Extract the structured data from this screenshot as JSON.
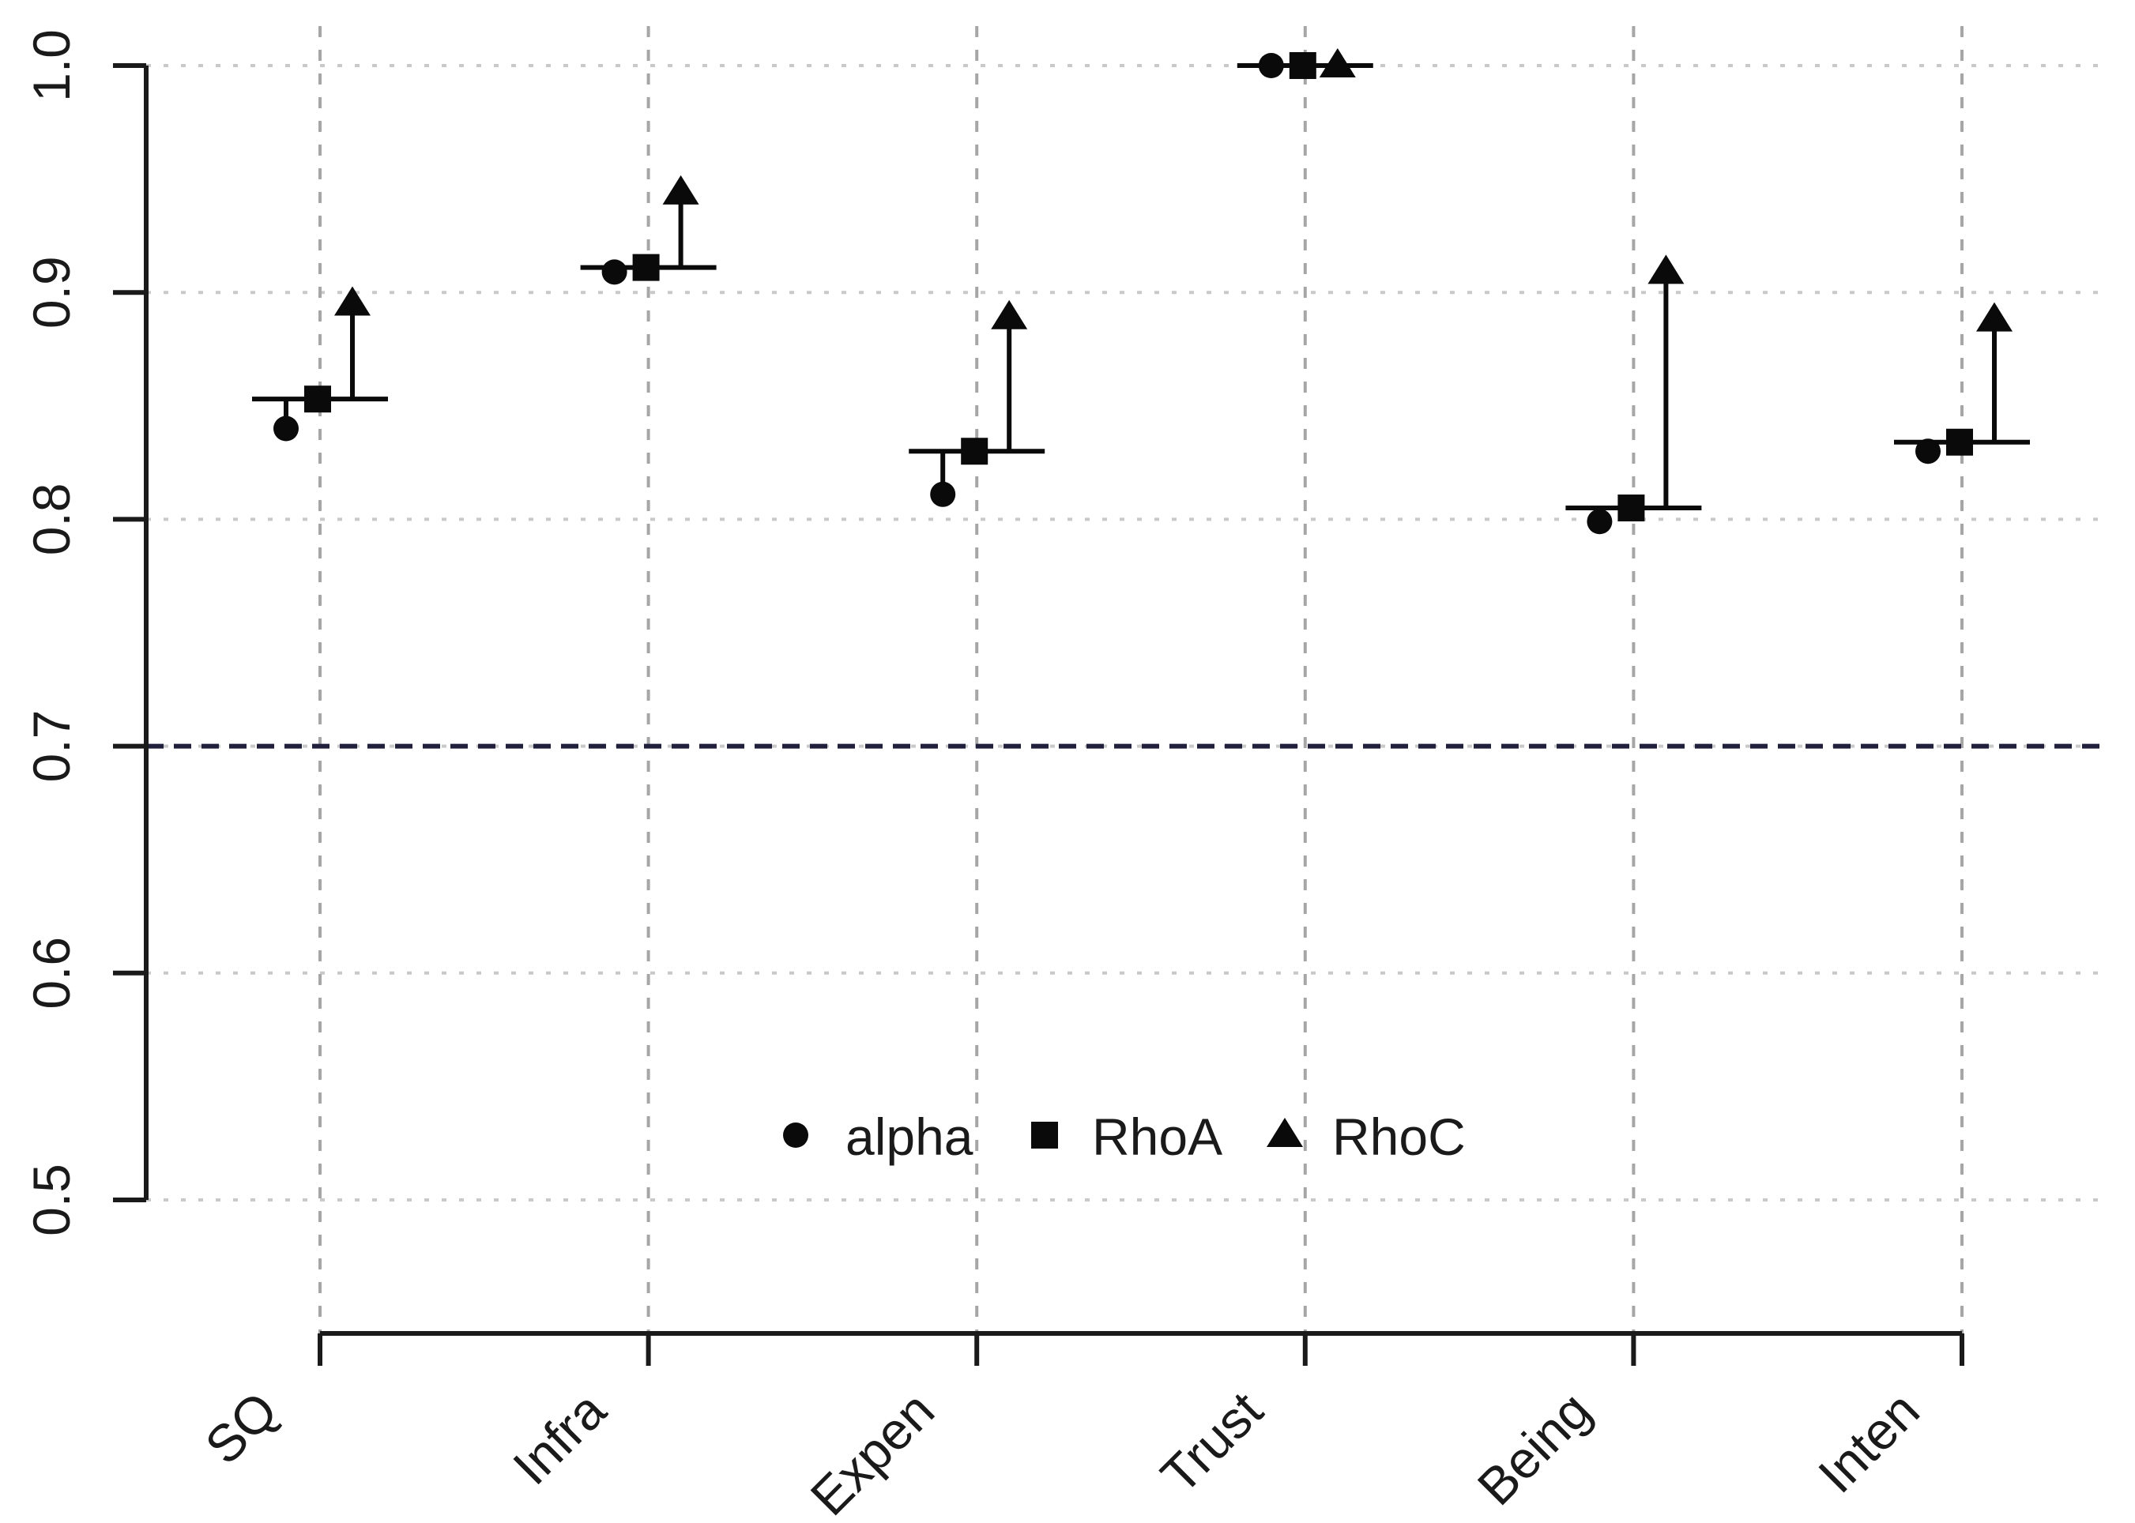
{
  "chart_data": {
    "type": "scatter",
    "title": "",
    "xlabel": "",
    "ylabel": "",
    "categories": [
      "SQ",
      "Infra",
      "Expen",
      "Trust",
      "Being",
      "Inten"
    ],
    "series": [
      {
        "name": "alpha",
        "marker": "circle",
        "values": [
          0.84,
          0.909,
          0.811,
          1.0,
          0.799,
          0.83
        ]
      },
      {
        "name": "RhoA",
        "marker": "square",
        "values": [
          0.853,
          0.911,
          0.83,
          1.0,
          0.805,
          0.834
        ]
      },
      {
        "name": "RhoC",
        "marker": "triangle",
        "values": [
          0.895,
          0.944,
          0.889,
          1.0,
          0.909,
          0.888
        ]
      }
    ],
    "ytick_labels": [
      "1.0",
      "0.9",
      "0.8",
      "0.7",
      "0.6",
      "0.5"
    ],
    "ytick_values": [
      1.0,
      0.9,
      0.8,
      0.7,
      0.6,
      0.5
    ],
    "ylim": [
      0.5,
      1.0
    ],
    "grid": {
      "on": true,
      "horizontal_style": "dotted",
      "vertical_style": "dashed",
      "horizontal_color": "#c9c9c9",
      "vertical_color": "#a6a6a6"
    },
    "reference_line": {
      "value": 0.7,
      "style": "dashed",
      "color": "#20203c"
    },
    "whiskers": "horizontal bar at RhoA value; vertical connector down to alpha and up to RhoC",
    "marker_color": "#0a0a0a",
    "axis_color": "#1a1a1a",
    "legend": {
      "position": "inside-bottom-center",
      "entries": [
        {
          "marker": "circle",
          "label": "alpha"
        },
        {
          "marker": "square",
          "label": "RhoA"
        },
        {
          "marker": "triangle",
          "label": "RhoC"
        }
      ]
    }
  }
}
